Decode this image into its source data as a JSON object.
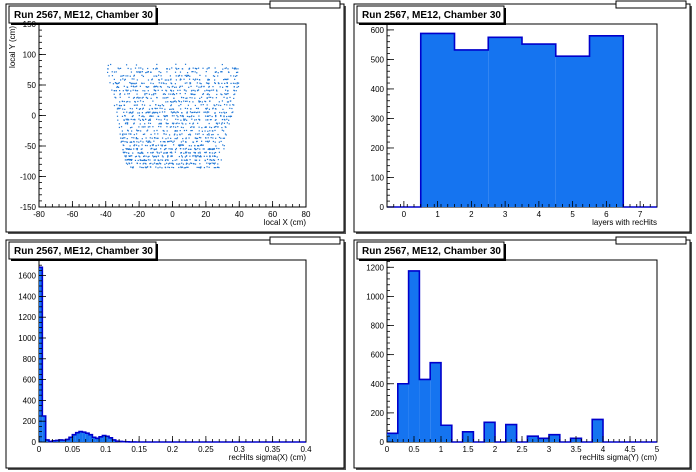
{
  "chart_data": [
    {
      "type": "scatter",
      "title": "Run 2567, ME12, Chamber 30",
      "xlabel": "local X (cm)",
      "ylabel": "local Y (cm)",
      "xlim": [
        -80,
        80
      ],
      "ylim": [
        -150,
        150
      ],
      "xticks": [
        -80,
        -60,
        -40,
        -20,
        0,
        20,
        40,
        60,
        80
      ],
      "yticks": [
        -150,
        -100,
        -50,
        0,
        50,
        100,
        150
      ],
      "shape": {
        "top": {
          "y": 82,
          "xmin": -40,
          "xmax": 42
        },
        "bottom": {
          "y": -85,
          "xmin": -28,
          "xmax": 28
        }
      },
      "point_color": "#1f77d6"
    },
    {
      "type": "bar",
      "title": "Run 2567, ME12, Chamber 30",
      "xlabel": "layers with recHits",
      "ylabel": "",
      "xlim": [
        -0.5,
        7.5
      ],
      "ylim": [
        0,
        620
      ],
      "xticks": [
        0,
        1,
        2,
        3,
        4,
        5,
        6,
        7
      ],
      "yticks": [
        0,
        100,
        200,
        300,
        400,
        500,
        600
      ],
      "bin_edges": [
        -0.5,
        0.5,
        1.5,
        2.5,
        3.5,
        4.5,
        5.5,
        6.5,
        7.5
      ],
      "values": [
        0,
        588,
        532,
        575,
        552,
        511,
        580,
        0
      ]
    },
    {
      "type": "bar",
      "title": "Run 2567, ME12, Chamber 30",
      "xlabel": "recHits sigma(X) (cm)",
      "ylabel": "",
      "xlim": [
        0,
        0.4
      ],
      "ylim": [
        0,
        1750
      ],
      "xticks": [
        0,
        0.05,
        0.1,
        0.15,
        0.2,
        0.25,
        0.3,
        0.35,
        0.4
      ],
      "ytick_labels": [
        "0",
        "200",
        "400",
        "600",
        "800",
        "1000",
        "1200",
        "1400",
        "1600"
      ],
      "bin_width": 0.005,
      "values": [
        1680,
        250,
        20,
        5,
        12,
        15,
        20,
        18,
        25,
        45,
        70,
        90,
        100,
        95,
        85,
        70,
        45,
        35,
        50,
        62,
        55,
        40,
        20,
        8,
        5,
        3,
        2,
        1,
        1,
        0,
        0,
        0,
        0,
        0,
        0,
        0,
        0,
        0,
        0,
        0,
        0,
        0,
        0,
        0,
        0,
        0,
        0,
        0,
        0,
        0,
        0,
        0,
        0,
        0,
        0,
        0,
        0,
        0,
        0,
        0,
        0,
        0,
        0,
        0,
        0,
        0,
        0,
        0,
        0,
        0,
        0,
        0,
        0,
        0,
        0,
        0,
        0,
        0,
        0,
        0
      ]
    },
    {
      "type": "bar",
      "title": "Run 2567, ME12, Chamber 30",
      "xlabel": "recHits sigma(Y) (cm)",
      "ylabel": "",
      "xlim": [
        0,
        5
      ],
      "ylim": [
        0,
        1250
      ],
      "xticks": [
        0,
        0.5,
        1,
        1.5,
        2,
        2.5,
        3,
        3.5,
        4,
        4.5,
        5
      ],
      "xtick_labels": [
        "0",
        "0.5",
        "1",
        "1.5",
        "2",
        "2.5",
        "3",
        "3.5",
        "4",
        "4.5",
        "5"
      ],
      "yticks": [
        0,
        200,
        400,
        600,
        800,
        1000,
        1200
      ],
      "bin_width": 0.2,
      "values": [
        60,
        400,
        1175,
        430,
        545,
        115,
        0,
        70,
        0,
        135,
        0,
        120,
        0,
        40,
        25,
        50,
        0,
        25,
        0,
        155,
        0,
        0,
        0,
        0,
        0
      ]
    }
  ]
}
